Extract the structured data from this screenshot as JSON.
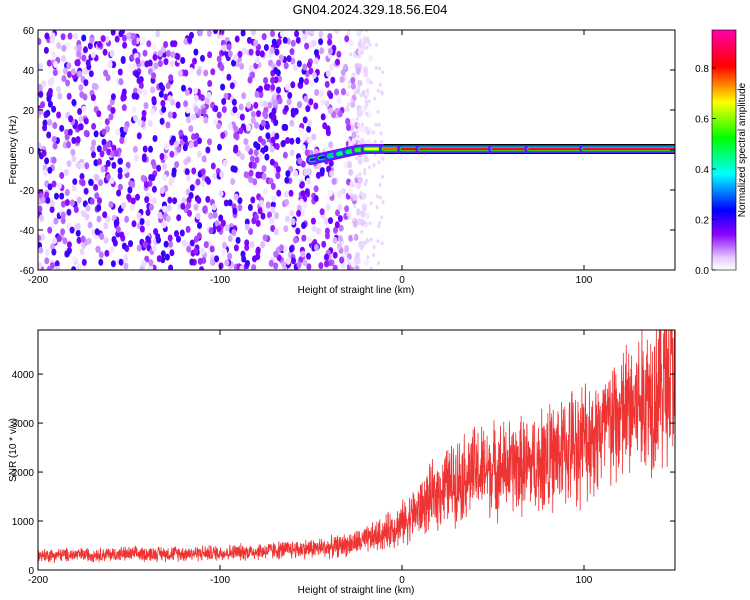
{
  "title": "GN04.2024.329.18.56.E04",
  "chart_data": [
    {
      "type": "heatmap",
      "xlabel": "Height of straight line (km)",
      "ylabel": "Frequency (Hz)",
      "xlim": [
        -200,
        150
      ],
      "ylim": [
        -60,
        60
      ],
      "xticks": [
        -200,
        -100,
        0,
        100
      ],
      "yticks": [
        -60,
        -40,
        -20,
        0,
        20,
        40,
        60
      ],
      "colorbar": {
        "label": "Normalized spectral amplitude",
        "range": [
          0,
          0.95
        ],
        "ticks": [
          0.0,
          0.2,
          0.4,
          0.6,
          0.8
        ],
        "colors": [
          "#ffffff",
          "#8800ff",
          "#0000ff",
          "#00ffff",
          "#00ff00",
          "#ffff00",
          "#ff0000",
          "#ff00ff"
        ]
      },
      "noise_region": {
        "x": [
          -200,
          -30
        ],
        "y": [
          -60,
          60
        ],
        "level": 0.1
      },
      "signal_trace": {
        "x": [
          -50,
          -45,
          -40,
          -35,
          -30,
          -25,
          -20,
          -10,
          0,
          10,
          50,
          70,
          100,
          150
        ],
        "y": [
          -5,
          -4,
          -3,
          -2,
          -1,
          0,
          0.5,
          0.5,
          0.5,
          0.5,
          0.5,
          0.5,
          0.5,
          0.5
        ],
        "level": [
          0.2,
          0.25,
          0.35,
          0.45,
          0.5,
          0.6,
          0.7,
          0.8,
          0.85,
          0.9,
          0.9,
          0.9,
          0.92,
          0.95
        ]
      }
    },
    {
      "type": "line",
      "xlabel": "Height of straight line (km)",
      "ylabel": "SNR (10 * v/v)",
      "xlim": [
        -200,
        150
      ],
      "ylim": [
        0,
        4900
      ],
      "xticks": [
        -200,
        -100,
        0,
        100
      ],
      "yticks": [
        0,
        1000,
        2000,
        3000,
        4000
      ],
      "color": "#ee3333",
      "series": [
        {
          "x": [
            -200,
            -180,
            -160,
            -140,
            -120,
            -100,
            -80,
            -60,
            -40,
            -30,
            -20,
            -10,
            0,
            10,
            20,
            30,
            40,
            50,
            60,
            70,
            80,
            90,
            100,
            110,
            120,
            130,
            140,
            150
          ],
          "y": [
            300,
            310,
            320,
            330,
            340,
            350,
            380,
            420,
            460,
            520,
            600,
            750,
            950,
            1250,
            1600,
            1850,
            2000,
            2050,
            2100,
            2150,
            2250,
            2450,
            2650,
            2850,
            3100,
            3400,
            3750,
            4100
          ]
        }
      ]
    }
  ]
}
